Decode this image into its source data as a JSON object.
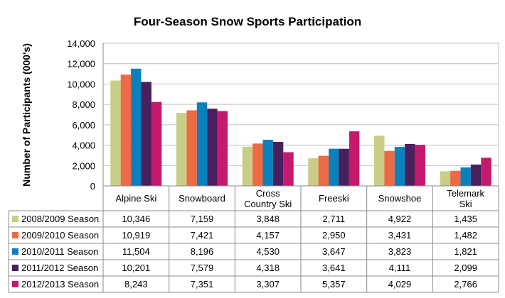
{
  "chart_data": {
    "type": "bar",
    "title": "Four-Season Snow Sports Participation",
    "xlabel": "",
    "ylabel": "Number of Participants (000's)",
    "ylim": [
      0,
      14000
    ],
    "yticks": [
      "0",
      "2,000",
      "4,000",
      "6,000",
      "8,000",
      "10,000",
      "12,000",
      "14,000"
    ],
    "grid": true,
    "legend": "data-table-left",
    "categories": [
      [
        "Alpine Ski"
      ],
      [
        "Snowboard"
      ],
      [
        "Cross",
        "Country Ski"
      ],
      [
        "Freeski"
      ],
      [
        "Snowshoe"
      ],
      [
        "Telemark",
        "Ski"
      ]
    ],
    "series": [
      {
        "name": "2008/2009 Season",
        "color": "#c9cd86",
        "values": [
          10346,
          7159,
          3848,
          2711,
          4922,
          1435
        ],
        "labels": [
          "10,346",
          "7,159",
          "3,848",
          "2,711",
          "4,922",
          "1,435"
        ]
      },
      {
        "name": "2009/2010 Season",
        "color": "#ec6a44",
        "values": [
          10919,
          7421,
          4157,
          2950,
          3431,
          1482
        ],
        "labels": [
          "10,919",
          "7,421",
          "4,157",
          "2,950",
          "3,431",
          "1,482"
        ]
      },
      {
        "name": "2010/2011 Season",
        "color": "#0c80bd",
        "values": [
          11504,
          8196,
          4530,
          3647,
          3823,
          1821
        ],
        "labels": [
          "11,504",
          "8,196",
          "4,530",
          "3,647",
          "3,823",
          "1,821"
        ]
      },
      {
        "name": "2011/2012 Season",
        "color": "#4b1e5c",
        "values": [
          10201,
          7579,
          4318,
          3641,
          4111,
          2099
        ],
        "labels": [
          "10,201",
          "7,579",
          "4,318",
          "3,641",
          "4,111",
          "2,099"
        ]
      },
      {
        "name": "2012/2013 Season",
        "color": "#c41a6d",
        "values": [
          8243,
          7351,
          3307,
          5357,
          4029,
          2766
        ],
        "labels": [
          "8,243",
          "7,351",
          "3,307",
          "5,357",
          "4,029",
          "2,766"
        ]
      }
    ]
  }
}
